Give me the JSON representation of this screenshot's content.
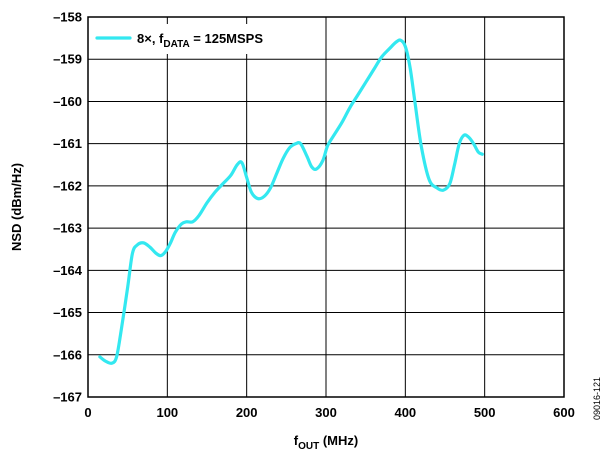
{
  "chart_data": {
    "type": "line",
    "xlabel": {
      "main": "f",
      "sub": "OUT",
      "unit": " (MHz)"
    },
    "ylabel": "NSD (dBm/Hz)",
    "xlim": [
      0,
      600
    ],
    "ylim": [
      -167,
      -158
    ],
    "xticks": [
      0,
      100,
      200,
      300,
      400,
      500,
      600
    ],
    "yticks": [
      -158,
      -159,
      -160,
      -161,
      -162,
      -163,
      -164,
      -165,
      -166,
      -167
    ],
    "xtick_labels": [
      "0",
      "100",
      "200",
      "300",
      "400",
      "500",
      "600"
    ],
    "ytick_labels": [
      "–158",
      "–159",
      "–160",
      "–161",
      "–162",
      "–163",
      "–164",
      "–165",
      "–166",
      "–167"
    ],
    "grid": true,
    "legend_position": "top-left",
    "series": [
      {
        "name": "8×, fDATA = 125MSPS",
        "legend_parts": {
          "prefix": "8×, f",
          "sub": "DATA",
          "suffix": " = 125MSPS"
        },
        "color": "#33E8F0",
        "x": [
          15,
          22,
          30,
          36,
          42,
          50,
          56,
          62,
          70,
          78,
          86,
          92,
          98,
          104,
          110,
          118,
          124,
          132,
          140,
          150,
          160,
          170,
          180,
          188,
          194,
          200,
          206,
          214,
          222,
          230,
          238,
          246,
          254,
          262,
          268,
          276,
          282,
          288,
          296,
          302,
          310,
          320,
          330,
          340,
          350,
          360,
          370,
          380,
          388,
          394,
          400,
          406,
          412,
          420,
          430,
          440,
          448,
          456,
          462,
          468,
          474,
          480,
          486,
          492,
          497
        ],
        "y": [
          -166.05,
          -166.15,
          -166.2,
          -166.05,
          -165.4,
          -164.4,
          -163.6,
          -163.4,
          -163.35,
          -163.45,
          -163.6,
          -163.65,
          -163.55,
          -163.35,
          -163.1,
          -162.9,
          -162.85,
          -162.85,
          -162.7,
          -162.4,
          -162.15,
          -161.95,
          -161.75,
          -161.5,
          -161.45,
          -161.8,
          -162.15,
          -162.3,
          -162.25,
          -162.05,
          -161.7,
          -161.35,
          -161.1,
          -161.0,
          -161.0,
          -161.3,
          -161.55,
          -161.6,
          -161.4,
          -161.05,
          -160.8,
          -160.5,
          -160.15,
          -159.85,
          -159.55,
          -159.25,
          -158.95,
          -158.75,
          -158.6,
          -158.55,
          -158.7,
          -159.2,
          -160.0,
          -161.05,
          -161.85,
          -162.05,
          -162.1,
          -161.95,
          -161.5,
          -161.0,
          -160.8,
          -160.85,
          -161.0,
          -161.2,
          -161.25
        ]
      }
    ],
    "figure_code": "09016-121"
  }
}
